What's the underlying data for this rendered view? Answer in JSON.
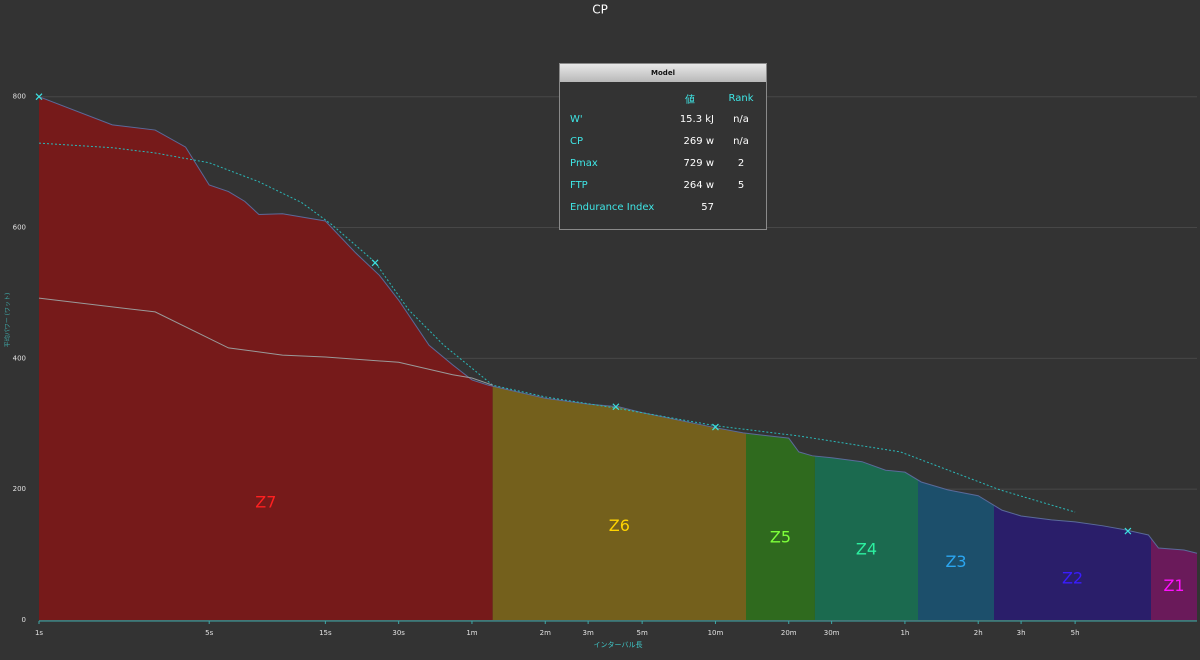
{
  "chart_data": {
    "type": "area",
    "title": "CP",
    "x_label": "インターバル長",
    "y_label": "平均パワー (ワット)",
    "log_x": true,
    "xlim": [
      1,
      57000
    ],
    "xticks": [
      {
        "value": 1,
        "label": "1s"
      },
      {
        "value": 5,
        "label": "5s"
      },
      {
        "value": 15,
        "label": "15s"
      },
      {
        "value": 30,
        "label": "30s"
      },
      {
        "value": 60,
        "label": "1m"
      },
      {
        "value": 120,
        "label": "2m"
      },
      {
        "value": 180,
        "label": "3m"
      },
      {
        "value": 300,
        "label": "5m"
      },
      {
        "value": 600,
        "label": "10m"
      },
      {
        "value": 1200,
        "label": "20m"
      },
      {
        "value": 1800,
        "label": "30m"
      },
      {
        "value": 3600,
        "label": "1h"
      },
      {
        "value": 7200,
        "label": "2h"
      },
      {
        "value": 10800,
        "label": "3h"
      },
      {
        "value": 18000,
        "label": "5h"
      }
    ],
    "ylim": [
      0,
      850
    ],
    "yticks": [
      0,
      200,
      400,
      600,
      800
    ],
    "grid": true,
    "series": [
      {
        "color": "#5a6a9a",
        "style": "solid",
        "x": [
          1,
          2,
          3,
          4,
          5,
          6,
          7,
          8,
          10,
          15,
          20,
          25,
          30,
          40,
          50,
          60,
          70,
          120,
          180,
          240,
          300,
          600,
          780,
          1200,
          1320,
          1500,
          1800,
          2400,
          3000,
          3600,
          4200,
          5400,
          7200,
          9000,
          10800,
          14400,
          18000,
          23400,
          28800,
          36000,
          39600,
          50400,
          57000
        ],
        "values": [
          800,
          757,
          749,
          723,
          665,
          655,
          640,
          620,
          621,
          610,
          561,
          527,
          489,
          420,
          390,
          367,
          359,
          339,
          330,
          326,
          317,
          294,
          286,
          278,
          257,
          251,
          248,
          242,
          229,
          226,
          211,
          199,
          190,
          168,
          159,
          153,
          150,
          144,
          138,
          130,
          110,
          107,
          102
        ]
      },
      {
        "color": "#2ab8b8",
        "style": "dashed",
        "x": [
          1,
          2,
          3,
          5,
          8,
          12,
          16,
          24,
          33,
          46,
          73,
          120,
          234,
          600,
          1340,
          3450,
          8830,
          18000
        ],
        "values": [
          729,
          722,
          714,
          699,
          670,
          638,
          604,
          547,
          474,
          420,
          359,
          341,
          324,
          297,
          281,
          257,
          199,
          165
        ]
      },
      {
        "color": "#9a9a9a",
        "style": "solid",
        "x": [
          1,
          3,
          6,
          10,
          15,
          30,
          50,
          60,
          73
        ],
        "values": [
          492,
          471,
          416,
          405,
          402,
          394,
          375,
          370,
          359
        ]
      }
    ],
    "markers": {
      "color": "#3de0e0",
      "x": [
        1,
        24,
        234,
        600,
        29650
      ],
      "values": [
        800,
        546,
        326,
        295,
        136
      ]
    },
    "zones": [
      {
        "name": "Z7",
        "start": 1,
        "end": 73,
        "fill": "#761a1a",
        "color": "#ff2020"
      },
      {
        "name": "Z6",
        "start": 73,
        "end": 801,
        "fill": "#74601c",
        "color": "#ffd400"
      },
      {
        "name": "Z5",
        "start": 801,
        "end": 1537,
        "fill": "#2f6a1e",
        "color": "#7dff3a"
      },
      {
        "name": "Z4",
        "start": 1537,
        "end": 4076,
        "fill": "#1b6a4f",
        "color": "#2cf0a0"
      },
      {
        "name": "Z3",
        "start": 4076,
        "end": 8360,
        "fill": "#1c4f6b",
        "color": "#2ba6f0"
      },
      {
        "name": "Z2",
        "start": 8360,
        "end": 36900,
        "fill": "#2a1e6a",
        "color": "#3a1cff"
      },
      {
        "name": "Z1",
        "start": 36900,
        "end": 57000,
        "fill": "#6a1a5a",
        "color": "#ff10ff"
      }
    ]
  },
  "model_panel": {
    "title": "Model",
    "columns": [
      "値",
      "Rank"
    ],
    "rows": [
      [
        "W'",
        "15.3 kJ",
        "n/a"
      ],
      [
        "CP",
        "269 w",
        "n/a"
      ],
      [
        "Pmax",
        "729 w",
        "2"
      ],
      [
        "FTP",
        "264 w",
        "5"
      ],
      [
        "Endurance Index",
        "57"
      ]
    ]
  }
}
